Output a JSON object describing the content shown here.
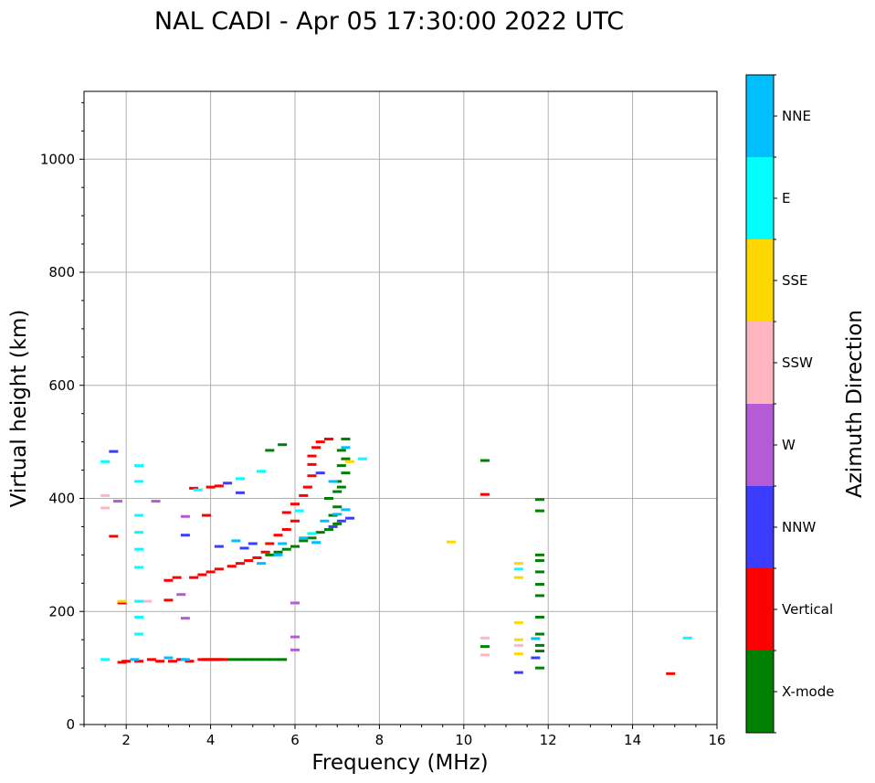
{
  "chart_data": {
    "type": "scatter",
    "title": "NAL CADI - Apr 05 17:30:00 2022 UTC",
    "xlabel": "Frequency (MHz)",
    "ylabel": "Virtual height (km)",
    "xlim": [
      1,
      16
    ],
    "ylim": [
      0,
      1120
    ],
    "xticks": [
      "2",
      "4",
      "6",
      "8",
      "10",
      "12",
      "14",
      "16"
    ],
    "yticks": [
      "0",
      "200",
      "400",
      "600",
      "800",
      "1000"
    ],
    "grid": true,
    "colorbar": {
      "label": "Azimuth Direction",
      "categories": [
        "X-mode",
        "Vertical",
        "NNW",
        "W",
        "SSW",
        "SSE",
        "E",
        "NNE"
      ],
      "colors": [
        "#008000",
        "#ff0000",
        "#3c3cff",
        "#b65bd6",
        "#ffb6c1",
        "#ffd700",
        "#00ffff",
        "#00bfff"
      ]
    },
    "series": [
      {
        "name": "X-mode",
        "points": [
          [
            4.5,
            115
          ],
          [
            4.7,
            115
          ],
          [
            4.9,
            115
          ],
          [
            5.1,
            115
          ],
          [
            5.3,
            115
          ],
          [
            5.5,
            115
          ],
          [
            5.7,
            115
          ],
          [
            4.2,
            115
          ],
          [
            4.0,
            115
          ],
          [
            5.4,
            300
          ],
          [
            5.6,
            305
          ],
          [
            5.8,
            310
          ],
          [
            6.0,
            315
          ],
          [
            6.2,
            325
          ],
          [
            6.4,
            330
          ],
          [
            6.6,
            340
          ],
          [
            6.8,
            345
          ],
          [
            7.0,
            355
          ],
          [
            6.9,
            370
          ],
          [
            7.0,
            385
          ],
          [
            6.8,
            400
          ],
          [
            7.0,
            412
          ],
          [
            7.1,
            420
          ],
          [
            7.0,
            430
          ],
          [
            7.2,
            445
          ],
          [
            7.1,
            458
          ],
          [
            7.2,
            470
          ],
          [
            7.1,
            485
          ],
          [
            7.2,
            505
          ],
          [
            5.4,
            485
          ],
          [
            5.7,
            495
          ],
          [
            10.5,
            467
          ],
          [
            11.8,
            398
          ],
          [
            11.8,
            378
          ],
          [
            11.8,
            300
          ],
          [
            11.8,
            290
          ],
          [
            11.8,
            270
          ],
          [
            11.8,
            248
          ],
          [
            11.8,
            228
          ],
          [
            11.8,
            190
          ],
          [
            11.8,
            160
          ],
          [
            11.8,
            140
          ],
          [
            11.8,
            130
          ],
          [
            11.8,
            100
          ],
          [
            10.5,
            138
          ]
        ]
      },
      {
        "name": "Vertical",
        "points": [
          [
            1.9,
            110
          ],
          [
            2.0,
            112
          ],
          [
            2.3,
            112
          ],
          [
            2.6,
            115
          ],
          [
            2.8,
            112
          ],
          [
            3.1,
            112
          ],
          [
            3.3,
            115
          ],
          [
            3.5,
            112
          ],
          [
            3.8,
            115
          ],
          [
            3.9,
            115
          ],
          [
            4.1,
            115
          ],
          [
            4.3,
            115
          ],
          [
            1.9,
            215
          ],
          [
            3.0,
            220
          ],
          [
            3.0,
            255
          ],
          [
            3.2,
            260
          ],
          [
            3.6,
            260
          ],
          [
            3.8,
            265
          ],
          [
            4.0,
            270
          ],
          [
            4.2,
            275
          ],
          [
            4.5,
            280
          ],
          [
            4.7,
            285
          ],
          [
            4.9,
            290
          ],
          [
            5.1,
            295
          ],
          [
            5.3,
            305
          ],
          [
            5.4,
            320
          ],
          [
            5.6,
            335
          ],
          [
            5.8,
            345
          ],
          [
            6.0,
            360
          ],
          [
            5.8,
            375
          ],
          [
            6.0,
            390
          ],
          [
            6.2,
            405
          ],
          [
            6.3,
            420
          ],
          [
            6.4,
            440
          ],
          [
            6.4,
            460
          ],
          [
            6.4,
            475
          ],
          [
            6.5,
            490
          ],
          [
            6.6,
            500
          ],
          [
            6.8,
            505
          ],
          [
            3.6,
            418
          ],
          [
            3.9,
            370
          ],
          [
            4.0,
            420
          ],
          [
            4.2,
            422
          ],
          [
            10.5,
            407
          ],
          [
            14.9,
            90
          ],
          [
            1.7,
            333
          ]
        ]
      },
      {
        "name": "NNW",
        "points": [
          [
            11.3,
            92
          ],
          [
            11.7,
            118
          ],
          [
            6.6,
            445
          ],
          [
            6.9,
            350
          ],
          [
            7.1,
            360
          ],
          [
            7.3,
            365
          ],
          [
            5.0,
            320
          ],
          [
            4.7,
            410
          ],
          [
            4.2,
            315
          ],
          [
            4.8,
            312
          ],
          [
            3.4,
            335
          ],
          [
            4.4,
            427
          ],
          [
            1.7,
            483
          ]
        ]
      },
      {
        "name": "W",
        "points": [
          [
            3.3,
            230
          ],
          [
            3.4,
            188
          ],
          [
            2.7,
            395
          ],
          [
            6.0,
            215
          ],
          [
            6.0,
            155
          ],
          [
            6.0,
            132
          ],
          [
            1.8,
            395
          ],
          [
            3.4,
            368
          ]
        ]
      },
      {
        "name": "SSW",
        "points": [
          [
            10.5,
            153
          ],
          [
            10.5,
            123
          ],
          [
            1.5,
            405
          ],
          [
            1.5,
            383
          ],
          [
            11.3,
            140
          ],
          [
            2.5,
            218
          ]
        ]
      },
      {
        "name": "SSE",
        "points": [
          [
            9.7,
            323
          ],
          [
            11.3,
            285
          ],
          [
            11.3,
            260
          ],
          [
            11.3,
            180
          ],
          [
            11.3,
            150
          ],
          [
            11.3,
            125
          ],
          [
            7.3,
            465
          ],
          [
            1.9,
            218
          ]
        ]
      },
      {
        "name": "E",
        "points": [
          [
            1.5,
            115
          ],
          [
            1.5,
            465
          ],
          [
            2.3,
            458
          ],
          [
            2.3,
            430
          ],
          [
            2.3,
            370
          ],
          [
            2.3,
            340
          ],
          [
            2.3,
            310
          ],
          [
            2.3,
            278
          ],
          [
            2.3,
            218
          ],
          [
            2.3,
            190
          ],
          [
            2.3,
            160
          ],
          [
            3.7,
            415
          ],
          [
            4.7,
            435
          ],
          [
            5.2,
            448
          ],
          [
            11.3,
            275
          ],
          [
            15.3,
            153
          ],
          [
            7.6,
            470
          ],
          [
            6.1,
            378
          ],
          [
            6.4,
            338
          ]
        ]
      },
      {
        "name": "NNE",
        "points": [
          [
            2.2,
            115
          ],
          [
            5.2,
            285
          ],
          [
            5.6,
            300
          ],
          [
            5.7,
            320
          ],
          [
            6.2,
            330
          ],
          [
            6.5,
            322
          ],
          [
            6.7,
            360
          ],
          [
            7.0,
            372
          ],
          [
            7.2,
            380
          ],
          [
            7.2,
            490
          ],
          [
            6.9,
            430
          ],
          [
            11.7,
            152
          ],
          [
            4.6,
            325
          ],
          [
            3.4,
            115
          ],
          [
            3.0,
            118
          ]
        ]
      }
    ]
  }
}
